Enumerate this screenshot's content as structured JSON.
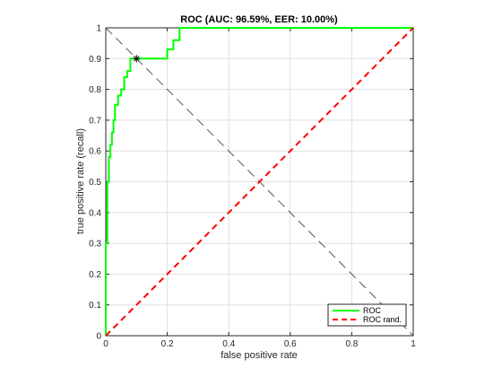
{
  "chart_data": {
    "type": "line",
    "title": "ROC (AUC: 96.59%, EER: 10.00%)",
    "xlabel": "false positive rate",
    "ylabel": "true positive rate (recall)",
    "xlim": [
      0,
      1
    ],
    "ylim": [
      0,
      1
    ],
    "x_ticks": [
      "0",
      "0.2",
      "0.4",
      "0.6",
      "0.8",
      "1"
    ],
    "y_ticks": [
      "0",
      "0.1",
      "0.2",
      "0.3",
      "0.4",
      "0.5",
      "0.6",
      "0.7",
      "0.8",
      "0.9",
      "1"
    ],
    "grid": true,
    "legend_position": "bottom-right",
    "series": [
      {
        "name": "ROC",
        "color": "#00ff00",
        "style": "solid",
        "x": [
          0,
          0,
          0.005,
          0.005,
          0.01,
          0.01,
          0.015,
          0.015,
          0.02,
          0.02,
          0.025,
          0.025,
          0.03,
          0.03,
          0.04,
          0.04,
          0.05,
          0.05,
          0.06,
          0.06,
          0.07,
          0.07,
          0.08,
          0.08,
          0.2,
          0.2,
          0.22,
          0.22,
          0.24,
          0.24,
          1
        ],
        "y": [
          0,
          0.3,
          0.3,
          0.5,
          0.5,
          0.58,
          0.58,
          0.62,
          0.62,
          0.66,
          0.66,
          0.7,
          0.7,
          0.75,
          0.75,
          0.78,
          0.78,
          0.8,
          0.8,
          0.84,
          0.84,
          0.86,
          0.86,
          0.9,
          0.9,
          0.93,
          0.93,
          0.96,
          0.96,
          1.0,
          1.0
        ]
      },
      {
        "name": "ROC rand.",
        "color": "#ff0000",
        "style": "dashed",
        "x": [
          0,
          1
        ],
        "y": [
          0,
          1
        ]
      }
    ],
    "reference_line": {
      "color": "#555555",
      "style": "dashed",
      "x": [
        0,
        1
      ],
      "y": [
        1,
        0
      ]
    },
    "eer_point": {
      "x": 0.1,
      "y": 0.9,
      "marker": "asterisk"
    }
  }
}
